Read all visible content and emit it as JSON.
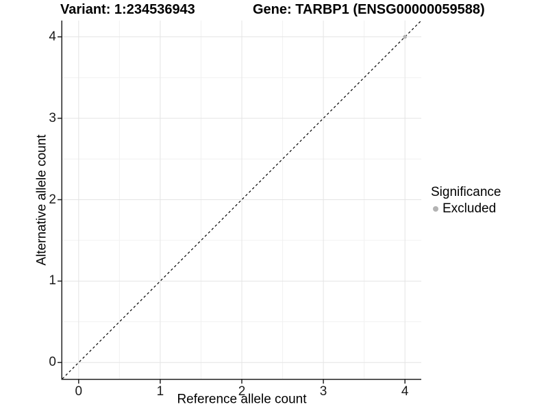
{
  "titles": {
    "variant": "Variant: 1:234536943",
    "gene": "Gene: TARBP1 (ENSG00000059588)"
  },
  "axes": {
    "x_label": "Reference allele count",
    "y_label": "Alternative allele count"
  },
  "legend": {
    "title": "Significance",
    "items": [
      {
        "label": "Excluded",
        "color": "#b3b3b3"
      }
    ]
  },
  "colors": {
    "background": "#ffffff",
    "major_grid": "#e4e4e4",
    "minor_grid": "#f1f1f1",
    "axis_line": "#222222",
    "tick_mark": "#222222",
    "reference_line": "#000000",
    "point": "#b3b3b3"
  },
  "chart_data": {
    "type": "scatter",
    "title_left": "Variant: 1:234536943",
    "title_right": "Gene: TARBP1 (ENSG00000059588)",
    "xlabel": "Reference allele count",
    "ylabel": "Alternative allele count",
    "xlim": [
      -0.2,
      4.2
    ],
    "ylim": [
      -0.2,
      4.2
    ],
    "x_ticks": [
      0,
      1,
      2,
      3,
      4
    ],
    "y_ticks": [
      0,
      1,
      2,
      3,
      4
    ],
    "x_minor": [
      0.5,
      1.5,
      2.5,
      3.5
    ],
    "y_minor": [
      0.5,
      1.5,
      2.5,
      3.5
    ],
    "grid": true,
    "legend_position": "right",
    "reference_line": {
      "slope": 1,
      "intercept": 0,
      "style": "dashed"
    },
    "series": [
      {
        "name": "Excluded",
        "color": "#b3b3b3",
        "points": [
          {
            "x": 4,
            "y": 4
          }
        ]
      }
    ]
  }
}
